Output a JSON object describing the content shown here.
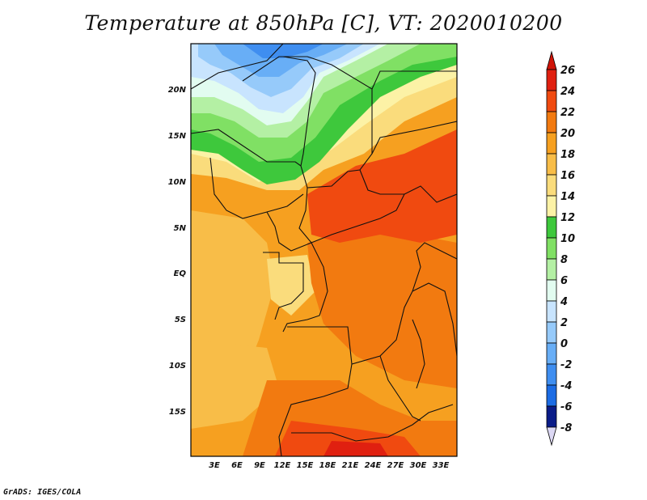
{
  "title": "Temperature at 850hPa [C], VT: 2020010200",
  "credit": "GrADS: IGES/COLA",
  "map": {
    "lat_ticks": [
      "20N",
      "15N",
      "10N",
      "5N",
      "EQ",
      "5S",
      "10S",
      "15S"
    ],
    "lon_ticks": [
      "3E",
      "6E",
      "9E",
      "12E",
      "15E",
      "18E",
      "21E",
      "24E",
      "27E",
      "30E",
      "33E"
    ]
  },
  "colorbar": {
    "labels": [
      "26",
      "24",
      "22",
      "20",
      "18",
      "16",
      "14",
      "12",
      "10",
      "8",
      "6",
      "4",
      "2",
      "0",
      "-2",
      "-4",
      "-6",
      "-8"
    ],
    "colors": [
      "#e02010",
      "#f04a10",
      "#f27a10",
      "#f6a020",
      "#f8bd48",
      "#fadc7c",
      "#fcf2a6",
      "#3ec83c",
      "#80e064",
      "#b4f0a4",
      "#e2fcf0",
      "#c8e4fe",
      "#96cafa",
      "#68aef6",
      "#3f8ef0",
      "#1c6ce4",
      "#1048c8",
      "#0a1c88"
    ]
  }
}
